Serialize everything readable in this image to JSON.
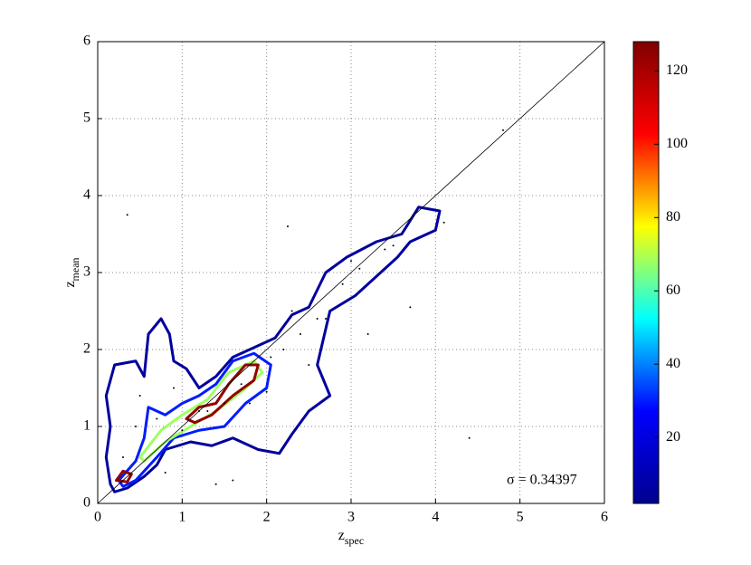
{
  "chart_data": {
    "type": "contour",
    "xlabel": "z",
    "xlabel_sub": "spec",
    "ylabel": "z",
    "ylabel_sub": "mean",
    "annotation": "σ = 0.34397",
    "xlim": [
      0,
      6
    ],
    "ylim": [
      0,
      6
    ],
    "xticks": [
      0,
      1,
      2,
      3,
      4,
      5,
      6
    ],
    "yticks": [
      0,
      1,
      2,
      3,
      4,
      5,
      6
    ],
    "grid": true,
    "colormap": [
      "#00008f",
      "#0000ff",
      "#00ffff",
      "#ffff00",
      "#ff0000",
      "#800000"
    ],
    "clim": [
      2,
      128
    ],
    "cticks": [
      20,
      40,
      60,
      80,
      100,
      120
    ],
    "reference_line": {
      "x": [
        0,
        6
      ],
      "y": [
        0,
        6
      ]
    },
    "contours": [
      {
        "level": 5,
        "x": [
          0.15,
          0.1,
          0.15,
          0.1,
          0.2,
          0.45,
          0.55,
          0.6,
          0.75,
          0.85,
          0.9,
          1.05,
          1.2,
          1.4,
          1.6,
          1.9,
          2.1,
          2.3,
          2.5,
          2.7,
          2.95,
          3.3,
          3.6,
          3.8,
          4.05,
          4.0,
          3.7,
          3.55,
          3.3,
          3.05,
          2.75,
          2.6,
          2.75,
          2.5,
          2.3,
          2.15,
          1.9,
          1.6,
          1.35,
          1.1,
          0.8,
          0.7,
          0.55,
          0.35,
          0.2
        ],
        "y": [
          0.25,
          0.6,
          1.0,
          1.4,
          1.8,
          1.85,
          1.65,
          2.2,
          2.4,
          2.2,
          1.85,
          1.75,
          1.5,
          1.65,
          1.9,
          2.05,
          2.15,
          2.45,
          2.55,
          3.0,
          3.2,
          3.4,
          3.5,
          3.85,
          3.8,
          3.55,
          3.4,
          3.2,
          2.95,
          2.7,
          2.5,
          1.8,
          1.4,
          1.2,
          0.9,
          0.65,
          0.7,
          0.85,
          0.75,
          0.8,
          0.7,
          0.5,
          0.35,
          0.2,
          0.15
        ]
      },
      {
        "level": 30,
        "x": [
          0.25,
          0.45,
          0.55,
          0.6,
          0.8,
          1.0,
          1.2,
          1.4,
          1.6,
          1.85,
          2.05,
          2.0,
          1.75,
          1.5,
          1.2,
          0.9,
          0.7,
          0.45,
          0.3
        ],
        "y": [
          0.3,
          0.55,
          0.85,
          1.25,
          1.15,
          1.3,
          1.4,
          1.55,
          1.85,
          1.95,
          1.8,
          1.5,
          1.3,
          1.0,
          0.95,
          0.85,
          0.6,
          0.3,
          0.22
        ]
      },
      {
        "level": 68,
        "x": [
          0.5,
          0.75,
          1.0,
          1.3,
          1.55,
          1.85,
          1.95,
          1.7,
          1.4,
          1.1,
          0.8,
          0.55
        ],
        "y": [
          0.6,
          0.95,
          1.15,
          1.35,
          1.7,
          1.85,
          1.7,
          1.45,
          1.2,
          1.0,
          0.8,
          0.55
        ]
      },
      {
        "level": 124,
        "x": [
          1.05,
          1.2,
          1.4,
          1.55,
          1.75,
          1.9,
          1.85,
          1.6,
          1.35,
          1.15
        ],
        "y": [
          1.1,
          1.25,
          1.3,
          1.55,
          1.8,
          1.8,
          1.6,
          1.4,
          1.15,
          1.05
        ]
      },
      {
        "level": 124,
        "x": [
          0.22,
          0.3,
          0.4,
          0.35
        ],
        "y": [
          0.3,
          0.42,
          0.38,
          0.28
        ]
      }
    ],
    "points": {
      "x": [
        0.35,
        0.5,
        0.7,
        0.9,
        1.0,
        1.3,
        1.5,
        1.7,
        2.05,
        2.2,
        2.4,
        2.6,
        2.9,
        3.1,
        3.4,
        3.2,
        0.3,
        1.2,
        2.5,
        3.7,
        4.1,
        4.4,
        4.8,
        2.25,
        1.6,
        0.8,
        1.8,
        2.0,
        2.7,
        3.0,
        1.4,
        0.45,
        2.3,
        3.5
      ],
      "y": [
        3.75,
        1.4,
        1.1,
        1.5,
        0.95,
        1.2,
        1.3,
        1.55,
        1.9,
        2.0,
        2.2,
        2.4,
        2.85,
        3.05,
        3.3,
        2.2,
        0.6,
        1.2,
        1.8,
        2.55,
        3.65,
        0.85,
        4.85,
        3.6,
        0.3,
        0.4,
        1.3,
        1.45,
        2.4,
        3.15,
        0.25,
        1.0,
        2.5,
        3.35
      ]
    }
  }
}
